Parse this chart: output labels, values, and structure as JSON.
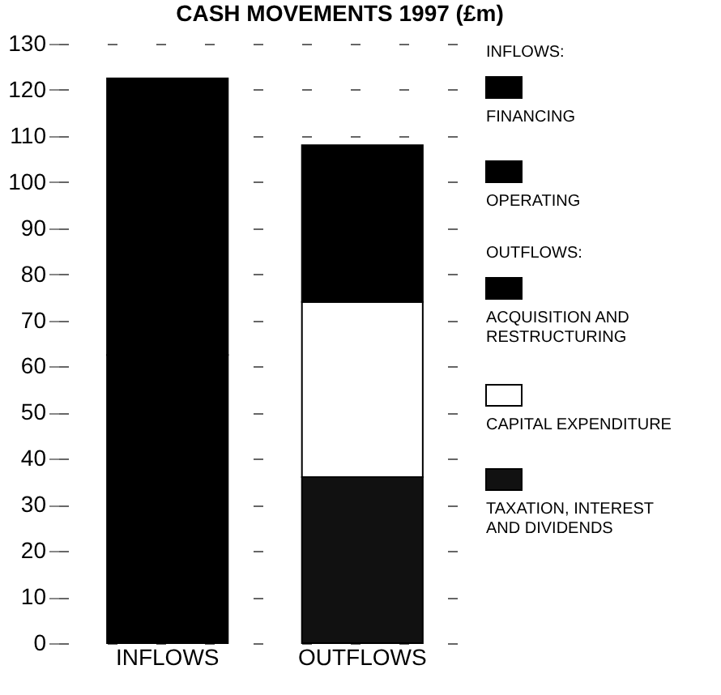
{
  "chart_data": {
    "type": "bar",
    "title": "CASH MOVEMENTS 1997 (£m)",
    "stacked": true,
    "categories": [
      "INFLOWS",
      "OUTFLOWS"
    ],
    "series": [
      {
        "name": "TAXATION, INTEREST AND DIVIDENDS",
        "color": "#111111",
        "values": [
          null,
          36
        ]
      },
      {
        "name": "CAPITAL EXPENDITURE",
        "color": "#ffffff",
        "values": [
          null,
          38
        ]
      },
      {
        "name": "ACQUISITION AND RESTRUCTURING",
        "color": "#000000",
        "values": [
          null,
          34
        ]
      },
      {
        "name": "OPERATING",
        "color": "#000000",
        "values": [
          62.5,
          null
        ]
      },
      {
        "name": "FINANCING",
        "color": "#000000",
        "values": [
          60,
          null
        ]
      }
    ],
    "legend_title": "INFLOWS:",
    "annotations": [
      "OUTFLOWS:"
    ],
    "ylim": [
      0,
      130
    ],
    "yticks": [
      0,
      10,
      20,
      30,
      40,
      50,
      60,
      70,
      80,
      90,
      100,
      110,
      120,
      130
    ],
    "grid": "y",
    "legend": "right"
  }
}
